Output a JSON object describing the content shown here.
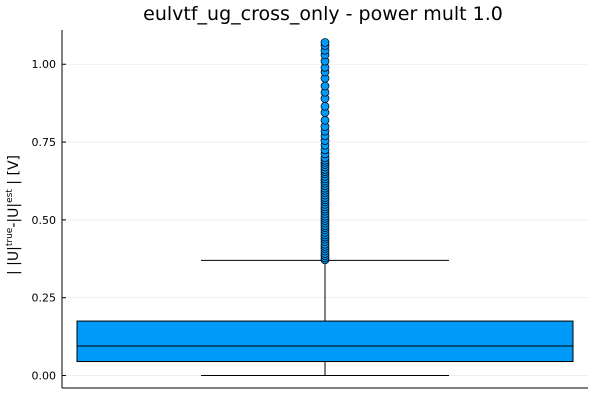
{
  "chart_data": {
    "type": "box",
    "title": "eulvtf_ug_cross_only - power mult 1.0",
    "ylabel": "| |U|true-|U|est | [V]",
    "ylabel_parts": {
      "pre": "| |U|",
      "sup1": "true",
      "mid": "-|U|",
      "sup2": "est",
      "post": " | [V]"
    },
    "xlabel": "",
    "ylim": [
      -0.04,
      1.11
    ],
    "yticks": [
      0.0,
      0.25,
      0.5,
      0.75,
      1.0
    ],
    "ytick_labels": [
      "0.00",
      "0.25",
      "0.50",
      "0.75",
      "1.00"
    ],
    "grid": true,
    "legend": "none",
    "box": {
      "color": "#009af9",
      "whisker_low": 0.0,
      "q1": 0.045,
      "median": 0.095,
      "q3": 0.175,
      "whisker_high": 0.37,
      "outliers": [
        0.372,
        0.378,
        0.385,
        0.392,
        0.4,
        0.408,
        0.415,
        0.422,
        0.43,
        0.438,
        0.445,
        0.452,
        0.46,
        0.468,
        0.475,
        0.482,
        0.49,
        0.498,
        0.505,
        0.512,
        0.52,
        0.528,
        0.535,
        0.542,
        0.55,
        0.558,
        0.565,
        0.572,
        0.58,
        0.588,
        0.595,
        0.602,
        0.61,
        0.618,
        0.625,
        0.632,
        0.64,
        0.648,
        0.655,
        0.662,
        0.67,
        0.678,
        0.685,
        0.692,
        0.7,
        0.712,
        0.725,
        0.74,
        0.755,
        0.77,
        0.785,
        0.8,
        0.82,
        0.845,
        0.865,
        0.89,
        0.91,
        0.93,
        0.955,
        0.975,
        0.99,
        1.01,
        1.03,
        1.045,
        1.06,
        1.07
      ]
    }
  }
}
